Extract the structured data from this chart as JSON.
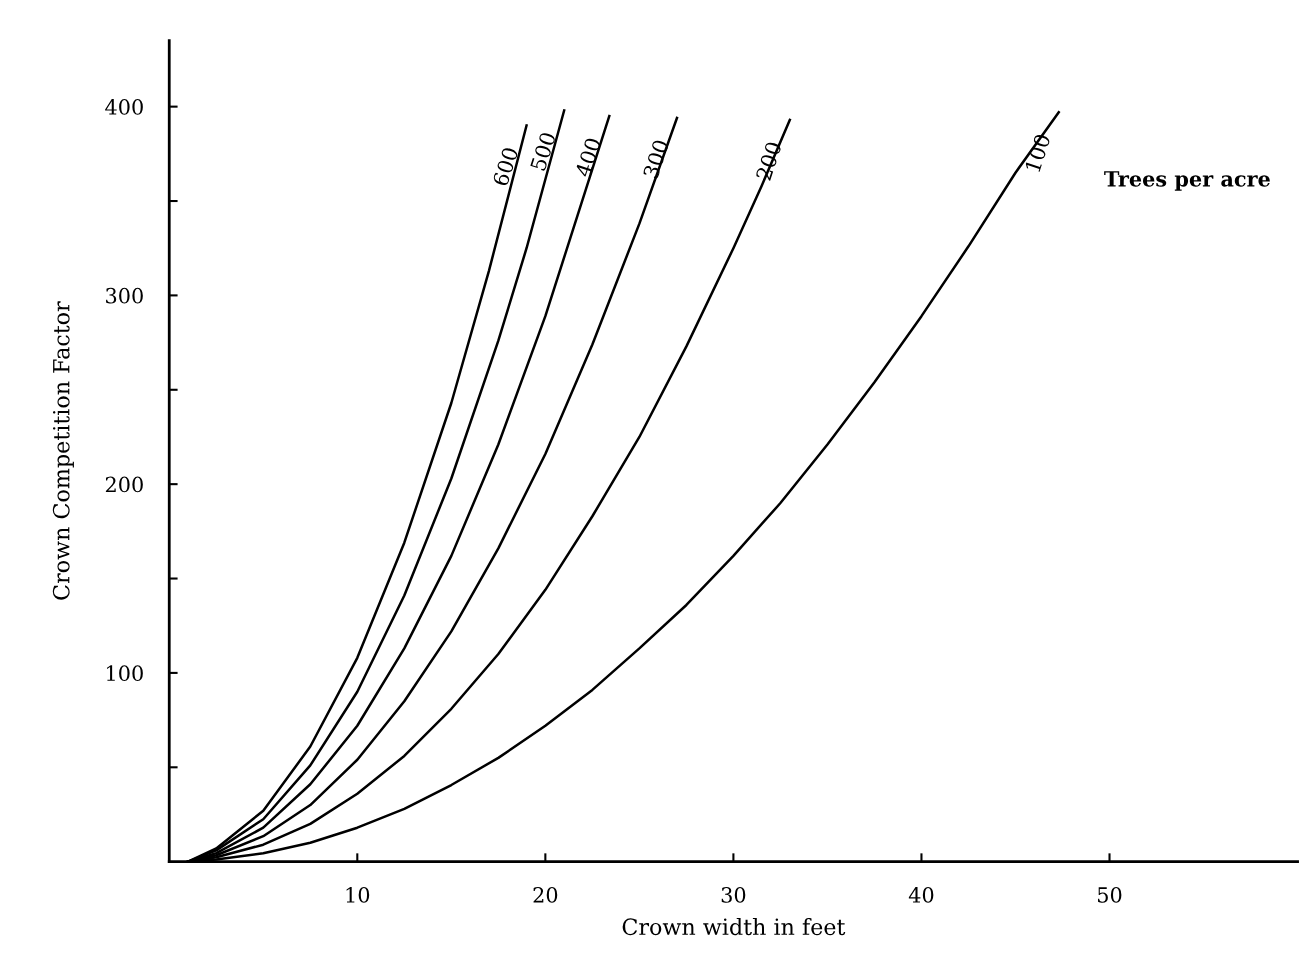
{
  "chart_data": {
    "type": "line",
    "xlabel": "Crown width in feet",
    "ylabel": "Crown Competition Factor",
    "xlim": [
      0,
      60
    ],
    "ylim": [
      0,
      435
    ],
    "xticks": [
      10,
      20,
      30,
      40,
      50
    ],
    "yticks": [
      {
        "value": 50,
        "label": null
      },
      100,
      {
        "value": 150,
        "label": null
      },
      200,
      {
        "value": 250,
        "label": null
      },
      300,
      {
        "value": 350,
        "label": null
      },
      400
    ],
    "grid": false,
    "legend": false,
    "marker": "none",
    "line_style": "solid",
    "annotations": [
      "Trees per acre"
    ],
    "series": [
      {
        "name": "600",
        "color": "#000000",
        "x": [
          1,
          2.5,
          5,
          7.5,
          10,
          12.5,
          15,
          17,
          19
        ],
        "values": [
          0,
          7,
          27,
          61,
          108,
          169,
          243,
          313,
          390
        ]
      },
      {
        "name": "500",
        "color": "#000000",
        "x": [
          1,
          2.5,
          5,
          7.5,
          10,
          12.5,
          15,
          17.5,
          19,
          21
        ],
        "values": [
          0,
          6,
          22.5,
          51,
          90,
          141,
          203,
          276,
          325,
          398
        ]
      },
      {
        "name": "400",
        "color": "#000000",
        "x": [
          1,
          2.5,
          5,
          7.5,
          10,
          12.5,
          15,
          17.5,
          20,
          23.4
        ],
        "values": [
          0,
          4.5,
          18,
          41,
          72,
          113,
          162,
          221,
          289,
          395
        ]
      },
      {
        "name": "300",
        "color": "#000000",
        "x": [
          1,
          2.5,
          5,
          7.5,
          10,
          12.5,
          15,
          17.5,
          20,
          22.5,
          25,
          27
        ],
        "values": [
          0,
          3.4,
          13.5,
          30,
          54,
          85,
          122,
          166,
          216,
          274,
          338,
          394
        ]
      },
      {
        "name": "200",
        "color": "#000000",
        "x": [
          1,
          2.5,
          5,
          7.5,
          10,
          12.5,
          15,
          17.5,
          20,
          22.5,
          25,
          27.5,
          30,
          31.5,
          33
        ],
        "values": [
          0,
          2.3,
          9,
          20,
          36,
          56,
          81,
          110,
          144,
          183,
          225,
          273,
          325,
          358,
          393
        ]
      },
      {
        "name": "100",
        "color": "#000000",
        "x": [
          1,
          2.5,
          5,
          7.5,
          10,
          12.5,
          15,
          17.5,
          20,
          22.5,
          25,
          27.5,
          30,
          32.5,
          35,
          37.5,
          40,
          42.5,
          45,
          47.3
        ],
        "values": [
          0,
          1.1,
          4.5,
          10,
          18,
          28,
          40.6,
          55,
          72,
          91,
          113,
          136,
          162,
          190,
          221,
          254,
          289,
          326,
          365,
          397
        ]
      }
    ]
  }
}
